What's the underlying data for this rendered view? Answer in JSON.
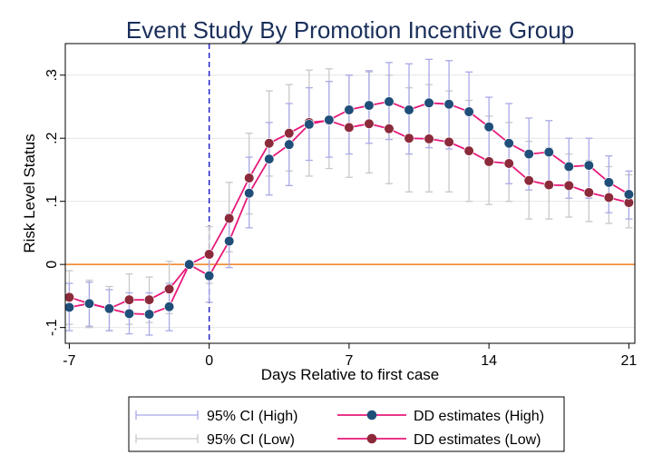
{
  "chart_data": {
    "type": "line",
    "title": "Event Study By Promotion Incentive Group",
    "xlabel": "Days Relative to first case",
    "ylabel": "Risk Level Status",
    "xlim": [
      -7.2,
      21.3
    ],
    "ylim": [
      -0.125,
      0.35
    ],
    "x_ticks": [
      -7,
      0,
      7,
      14,
      21
    ],
    "x_tick_labels": [
      "-7",
      "0",
      "7",
      "14",
      "21"
    ],
    "y_ticks": [
      -0.1,
      0,
      0.1,
      0.2,
      0.3
    ],
    "y_tick_labels": [
      "-.1",
      "0",
      ".1",
      ".2",
      ".3"
    ],
    "reference_lines": [
      {
        "axis": "x",
        "value": 0,
        "style": "dashed",
        "color": "#2323c8"
      },
      {
        "axis": "y",
        "value": 0,
        "style": "solid",
        "color": "#f07d1e"
      }
    ],
    "grid": true,
    "legend_position": "bottom",
    "x": [
      -7,
      -6,
      -5,
      -4,
      -3,
      -2,
      -1,
      0,
      1,
      2,
      3,
      4,
      5,
      6,
      7,
      8,
      9,
      10,
      11,
      12,
      13,
      14,
      15,
      16,
      17,
      18,
      19,
      20,
      21
    ],
    "series": [
      {
        "name": "DD estimates (High)",
        "kind": "line-marker",
        "color": "#1f4e79",
        "line_color": "#e6197a",
        "values": [
          -0.068,
          -0.062,
          -0.07,
          -0.078,
          -0.079,
          -0.067,
          0.0,
          -0.018,
          0.037,
          0.113,
          0.167,
          0.19,
          0.222,
          0.229,
          0.245,
          0.252,
          0.258,
          0.245,
          0.256,
          0.254,
          0.242,
          0.218,
          0.192,
          0.175,
          0.178,
          0.155,
          0.157,
          0.13,
          0.111
        ]
      },
      {
        "name": "DD estimates (Low)",
        "kind": "line-marker",
        "color": "#8b2a3a",
        "line_color": "#e6197a",
        "values": [
          -0.052,
          -0.062,
          -0.07,
          -0.056,
          -0.056,
          -0.039,
          0.0,
          0.016,
          0.073,
          0.137,
          0.192,
          0.208,
          0.225,
          0.228,
          0.217,
          0.223,
          0.215,
          0.2,
          0.199,
          0.194,
          0.18,
          0.163,
          0.16,
          0.133,
          0.126,
          0.125,
          0.114,
          0.106,
          0.098
        ]
      },
      {
        "name": "95% CI (High)",
        "kind": "errorbar",
        "color": "#a9a9e8",
        "lower": [
          -0.105,
          -0.098,
          -0.105,
          -0.11,
          -0.112,
          -0.105,
          0.0,
          -0.06,
          -0.005,
          0.058,
          0.11,
          0.125,
          0.165,
          0.17,
          0.175,
          0.192,
          0.198,
          0.175,
          0.185,
          0.183,
          0.175,
          0.165,
          0.128,
          0.118,
          0.12,
          0.105,
          0.105,
          0.082,
          0.072
        ],
        "upper": [
          -0.03,
          -0.028,
          -0.04,
          -0.045,
          -0.045,
          -0.03,
          0.0,
          0.022,
          0.08,
          0.17,
          0.225,
          0.255,
          0.28,
          0.29,
          0.3,
          0.307,
          0.32,
          0.318,
          0.325,
          0.323,
          0.305,
          0.265,
          0.255,
          0.232,
          0.228,
          0.2,
          0.2,
          0.172,
          0.148
        ]
      },
      {
        "name": "95% CI (Low)",
        "kind": "errorbar",
        "color": "#c8c8c8",
        "lower": [
          -0.095,
          -0.1,
          -0.105,
          -0.095,
          -0.092,
          -0.078,
          0.0,
          -0.03,
          0.02,
          0.08,
          0.14,
          0.148,
          0.14,
          0.152,
          0.138,
          0.145,
          0.128,
          0.115,
          0.115,
          0.115,
          0.1,
          0.095,
          0.1,
          0.072,
          0.072,
          0.075,
          0.068,
          0.065,
          0.058
        ],
        "upper": [
          -0.01,
          -0.025,
          -0.035,
          -0.015,
          -0.02,
          0.005,
          0.0,
          0.06,
          0.13,
          0.208,
          0.275,
          0.285,
          0.308,
          0.31,
          0.3,
          0.305,
          0.3,
          0.28,
          0.285,
          0.275,
          0.26,
          0.235,
          0.225,
          0.195,
          0.185,
          0.175,
          0.165,
          0.155,
          0.142
        ]
      }
    ]
  },
  "legend": {
    "items": [
      {
        "label": "95% CI (High)",
        "kind": "errorbar",
        "color": "#a9a9e8"
      },
      {
        "label": "DD estimates (High)",
        "kind": "line-marker",
        "marker_color": "#1f4e79",
        "line_color": "#e6197a"
      },
      {
        "label": "95% CI (Low)",
        "kind": "errorbar",
        "color": "#c8c8c8"
      },
      {
        "label": "DD estimates (Low)",
        "kind": "line-marker",
        "marker_color": "#8b2a3a",
        "line_color": "#e6197a"
      }
    ]
  }
}
